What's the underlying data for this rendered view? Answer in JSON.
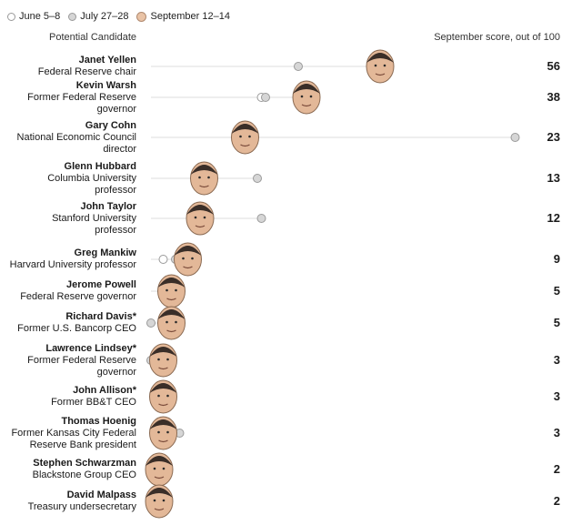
{
  "legend": {
    "june": "June 5–8",
    "july": "July 27–28",
    "september": "September 12–14"
  },
  "header": {
    "left": "Potential Candidate",
    "right": "September score, out of 100"
  },
  "colors": {
    "june_fill": "#ffffff",
    "june_stroke": "#9a9a9a",
    "july_fill": "#d6d6d6",
    "july_stroke": "#9a9a9a",
    "connector": "#dcdcdc",
    "face": "#e3b898"
  },
  "candidates": [
    {
      "name": "Janet Yellen",
      "role": [
        "Federal Reserve chair"
      ],
      "score": "56"
    },
    {
      "name": "Kevin Warsh",
      "role": [
        "Former Federal Reserve",
        "governor"
      ],
      "score": "38"
    },
    {
      "name": "Gary Cohn",
      "role": [
        "National Economic Council",
        "director"
      ],
      "score": "23"
    },
    {
      "name": "Glenn Hubbard",
      "role": [
        "Columbia University",
        "professor"
      ],
      "score": "13"
    },
    {
      "name": "John Taylor",
      "role": [
        "Stanford University",
        "professor"
      ],
      "score": "12"
    },
    {
      "name": "Greg Mankiw",
      "role": [
        "Harvard University professor"
      ],
      "score": "9"
    },
    {
      "name": "Jerome Powell",
      "role": [
        "Federal Reserve governor"
      ],
      "score": "5"
    },
    {
      "name": "Richard Davis*",
      "role": [
        "Former U.S. Bancorp CEO"
      ],
      "score": "5"
    },
    {
      "name": "Lawrence Lindsey*",
      "role": [
        "Former Federal Reserve",
        "governor"
      ],
      "score": "3"
    },
    {
      "name": "John Allison*",
      "role": [
        "Former BB&T CEO"
      ],
      "score": "3"
    },
    {
      "name": "Thomas Hoenig",
      "role": [
        "Former Kansas City Federal",
        "Reserve Bank president"
      ],
      "score": "3"
    },
    {
      "name": "Stephen Schwarzman",
      "role": [
        "Blackstone Group CEO"
      ],
      "score": "2"
    },
    {
      "name": "David Malpass",
      "role": [
        "Treasury undersecretary"
      ],
      "score": "2"
    }
  ],
  "chart_data": {
    "type": "scatter",
    "ylabel": "September score, out of 100",
    "xlim": [
      0,
      100
    ],
    "legend_position": "top-left",
    "grid": false,
    "categories": [
      "Janet Yellen",
      "Kevin Warsh",
      "Gary Cohn",
      "Glenn Hubbard",
      "John Taylor",
      "Greg Mankiw",
      "Jerome Powell",
      "Richard Davis*",
      "Lawrence Lindsey*",
      "John Allison*",
      "Thomas Hoenig",
      "Stephen Schwarzman",
      "David Malpass"
    ],
    "series": [
      {
        "name": "June 5–8",
        "values": [
          null,
          27,
          null,
          null,
          null,
          3,
          null,
          null,
          null,
          null,
          null,
          null,
          null
        ]
      },
      {
        "name": "July 27–28",
        "values": [
          36,
          28,
          89,
          26,
          27,
          6,
          null,
          0,
          0,
          null,
          7,
          null,
          null
        ]
      },
      {
        "name": "September 12–14",
        "values": [
          56,
          38,
          23,
          13,
          12,
          9,
          5,
          5,
          3,
          3,
          3,
          2,
          2
        ]
      }
    ]
  }
}
